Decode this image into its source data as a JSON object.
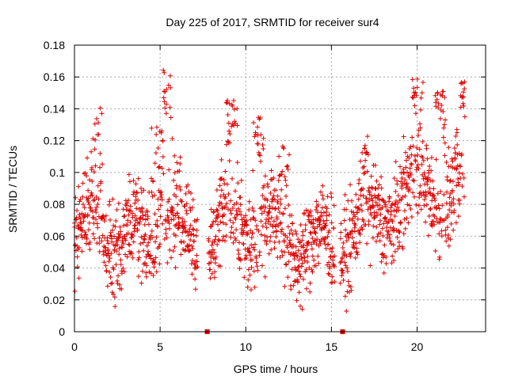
{
  "chart_data": {
    "type": "scatter",
    "title": "Day 225 of 2017, SRMTID for receiver sur4",
    "xlabel": "GPS time / hours",
    "ylabel": "SRMTID / TECUs",
    "xlim": [
      0,
      24
    ],
    "ylim": [
      0,
      0.18
    ],
    "xticks": [
      0,
      5,
      10,
      15,
      20
    ],
    "xtick_labels": [
      "0",
      "5",
      "10",
      "15",
      "20"
    ],
    "yticks": [
      0,
      0.02,
      0.04,
      0.06,
      0.08,
      0.1,
      0.12,
      0.14,
      0.16,
      0.18
    ],
    "ytick_labels": [
      "0",
      "0.02",
      "0.04",
      "0.06",
      "0.08",
      "0.1",
      "0.12",
      "0.14",
      "0.16",
      "0.18"
    ],
    "grid": true,
    "legend": "none",
    "marker": "+",
    "color": "#e00000",
    "series_profile": {
      "name": "SRMTID",
      "x_start": 0.0,
      "x_end": 22.8,
      "x_step": 0.013,
      "gaps": [
        [
          7.2,
          7.8
        ],
        [
          15.2,
          15.5
        ]
      ],
      "baseline": [
        [
          0.0,
          0.058
        ],
        [
          1.5,
          0.07
        ],
        [
          2.5,
          0.055
        ],
        [
          4.0,
          0.06
        ],
        [
          5.0,
          0.075
        ],
        [
          5.5,
          0.072
        ],
        [
          6.5,
          0.06
        ],
        [
          7.0,
          0.055
        ],
        [
          8.5,
          0.065
        ],
        [
          10.5,
          0.07
        ],
        [
          12.0,
          0.06
        ],
        [
          13.5,
          0.055
        ],
        [
          15.0,
          0.055
        ],
        [
          16.5,
          0.065
        ],
        [
          18.0,
          0.075
        ],
        [
          19.5,
          0.085
        ],
        [
          20.5,
          0.095
        ],
        [
          21.5,
          0.08
        ],
        [
          22.8,
          0.085
        ]
      ],
      "spikes": [
        [
          1.3,
          0.142
        ],
        [
          5.5,
          0.165
        ],
        [
          9.2,
          0.148
        ],
        [
          10.7,
          0.136
        ],
        [
          20.0,
          0.162
        ],
        [
          21.4,
          0.153
        ],
        [
          22.6,
          0.16
        ],
        [
          17.0,
          0.125
        ],
        [
          12.2,
          0.12
        ],
        [
          4.8,
          0.13
        ]
      ],
      "notable_values": [
        0.014,
        0.019,
        0.025,
        0.165,
        0.162,
        0.16
      ]
    },
    "axis_markers": [
      {
        "x": 7.75,
        "y": 0.0
      },
      {
        "x": 15.65,
        "y": 0.0
      }
    ]
  }
}
